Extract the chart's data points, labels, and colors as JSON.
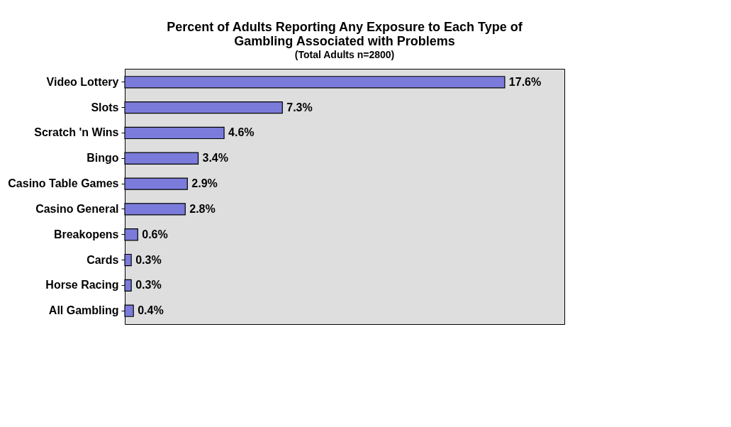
{
  "chart_data": {
    "type": "bar",
    "orientation": "horizontal",
    "title": [
      "Percent of Adults Reporting Any Exposure to Each Type of",
      "Gambling Associated with Problems"
    ],
    "subtitle": "(Total Adults n=2800)",
    "categories": [
      "Video Lottery",
      "Slots",
      "Scratch 'n Wins",
      "Bingo",
      "Casino Table Games",
      "Casino General",
      "Breakopens",
      "Cards",
      "Horse Racing",
      "All Gambling"
    ],
    "values": [
      17.6,
      7.3,
      4.6,
      3.4,
      2.9,
      2.8,
      0.6,
      0.3,
      0.3,
      0.4
    ],
    "value_labels": [
      "17.6%",
      "7.3%",
      "4.6%",
      "3.4%",
      "2.9%",
      "2.8%",
      "0.6%",
      "0.3%",
      "0.3%",
      "0.4%"
    ],
    "color": "#7b7bdb"
  }
}
